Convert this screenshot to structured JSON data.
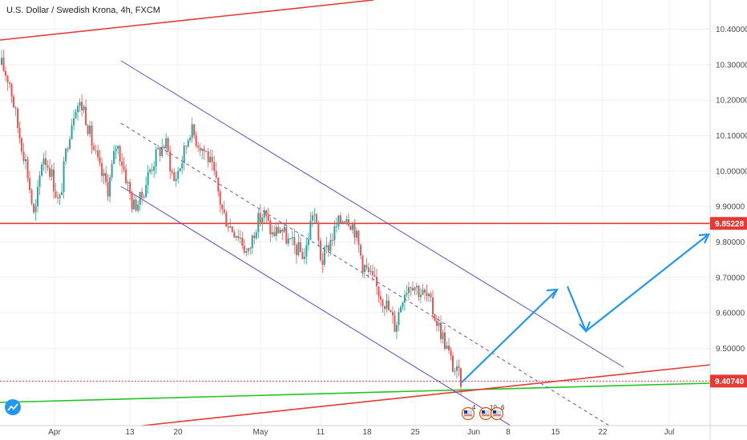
{
  "chart_title": "U.S. Dollar / Swedish Krona, 4h, FXCM",
  "chart_data": {
    "type": "candlestick",
    "title": "U.S. Dollar / Swedish Krona, 4h, FXCM",
    "x_tick_labels": [
      "Apr",
      "13",
      "20",
      "May",
      "11",
      "18",
      "25",
      "Jun",
      "8",
      "15",
      "22",
      "Jul"
    ],
    "y_tick_labels": [
      "10.40000",
      "10.30000",
      "10.20000",
      "10.10000",
      "10.00000",
      "9.90000",
      "9.80000",
      "9.70000",
      "9.60000",
      "9.50000"
    ],
    "ylim": [
      9.3,
      10.46
    ],
    "grid": true,
    "price_tags": [
      {
        "label": "9.85228",
        "value": 9.85228,
        "color": "#e53935"
      },
      {
        "label": "9.40740",
        "value": 9.4074,
        "color": "#e53935"
      }
    ],
    "price_path": [
      10.3,
      10.25,
      10.12,
      10.02,
      9.86,
      10.05,
      10.0,
      9.9,
      10.08,
      10.19,
      10.18,
      10.08,
      10.0,
      9.95,
      10.08,
      10.0,
      9.9,
      9.92,
      10.0,
      10.05,
      10.08,
      9.97,
      10.03,
      10.12,
      10.08,
      10.05,
      9.98,
      9.88,
      9.84,
      9.82,
      9.76,
      9.85,
      9.88,
      9.82,
      9.84,
      9.8,
      9.78,
      9.76,
      9.9,
      9.74,
      9.8,
      9.85,
      9.88,
      9.84,
      9.74,
      9.7,
      9.66,
      9.62,
      9.56,
      9.66,
      9.69,
      9.66,
      9.64,
      9.58,
      9.52,
      9.45,
      9.41
    ],
    "drawings": [
      {
        "kind": "horizontal_line",
        "name": "resistance-level",
        "value": 9.85228,
        "color": "#e53935"
      },
      {
        "kind": "dotted_line",
        "name": "current-price-level",
        "value": 9.4074,
        "color": "#e53935"
      },
      {
        "kind": "trend_line",
        "name": "upper-red-trendline",
        "color": "#e53935"
      },
      {
        "kind": "trend_line",
        "name": "lower-red-trendline",
        "color": "#e53935"
      },
      {
        "kind": "trend_line",
        "name": "green-trendline",
        "color": "#22c322"
      },
      {
        "kind": "channel",
        "name": "descending-channel",
        "color": "#6a4cc4"
      },
      {
        "kind": "path",
        "name": "projection-arrows",
        "color": "#2196f3"
      }
    ],
    "event_markers": [
      "4",
      "10",
      "6"
    ]
  },
  "colors": {
    "bull": "#26a69a",
    "bear": "#ef5350",
    "grid": "#eef0f3",
    "axis_text": "#4a4a4a",
    "trend_red": "#e53935",
    "trend_green": "#22c322",
    "channel": "#6a4cc4",
    "arrow": "#2196f3"
  },
  "icons": {
    "logo": "tradingview-cloud-icon"
  }
}
